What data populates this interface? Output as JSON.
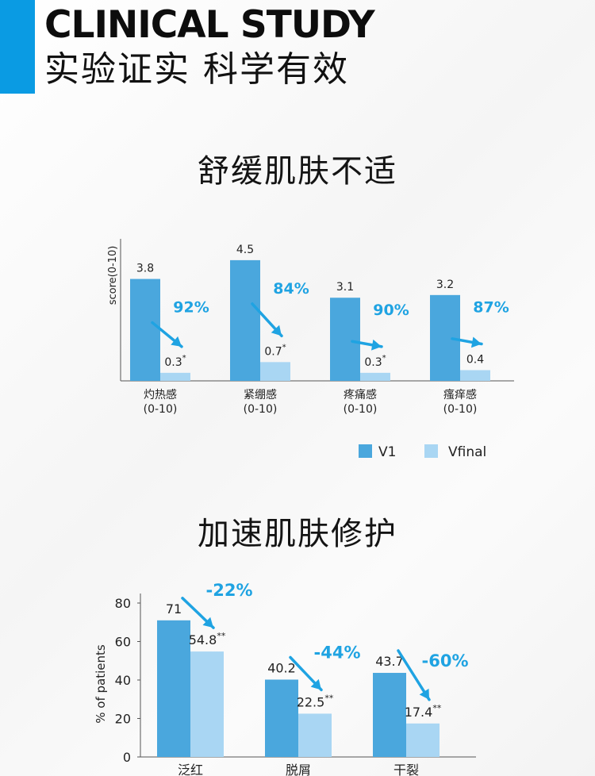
{
  "header": {
    "title": "CLINICAL STUDY",
    "subtitle": "实验证实 科学有效",
    "accent_color": "#0a9be3"
  },
  "colors": {
    "v1": "#4aa7dd",
    "vfinal": "#a9d6f3",
    "percent": "#1fa3e2",
    "axis": "#555555",
    "label": "#222222"
  },
  "sections": {
    "relief": {
      "title": "舒缓肌肤不适"
    },
    "repair": {
      "title": "加速肌肤修护"
    }
  },
  "chart_data": [
    {
      "type": "bar",
      "ylabel": "score(0-10)",
      "ylim": [
        0,
        5
      ],
      "categories": [
        "灼热感\n(0-10)",
        "紧绷感\n(0-10)",
        "疼痛感\n(0-10)",
        "瘙痒感\n(0-10)"
      ],
      "series": [
        {
          "name": "V1",
          "values": [
            3.8,
            4.5,
            3.1,
            3.2
          ],
          "labels": [
            "3.8",
            "4.5",
            "3.1",
            "3.2"
          ]
        },
        {
          "name": "Vfinal",
          "values": [
            0.3,
            0.7,
            0.3,
            0.4
          ],
          "labels": [
            "0.3*",
            "0.7*",
            "0.3*",
            "0.4"
          ]
        }
      ],
      "annotations": [
        "92%",
        "84%",
        "90%",
        "87%"
      ],
      "legend": "bottom-right"
    },
    {
      "type": "bar",
      "ylabel": "% of patients",
      "ylim": [
        0,
        80
      ],
      "yticks": [
        0,
        20,
        40,
        60,
        80
      ],
      "categories": [
        "泛红",
        "脱屑",
        "干裂"
      ],
      "series": [
        {
          "name": "V1",
          "values": [
            71,
            40.2,
            43.7
          ],
          "labels": [
            "71",
            "40.2",
            "43.7"
          ]
        },
        {
          "name": "Vfinal",
          "values": [
            54.8,
            22.5,
            17.4
          ],
          "labels": [
            "54.8**",
            "22.5**",
            "17.4**"
          ]
        }
      ],
      "annotations": [
        "-22%",
        "-44%",
        "-60%"
      ]
    }
  ]
}
